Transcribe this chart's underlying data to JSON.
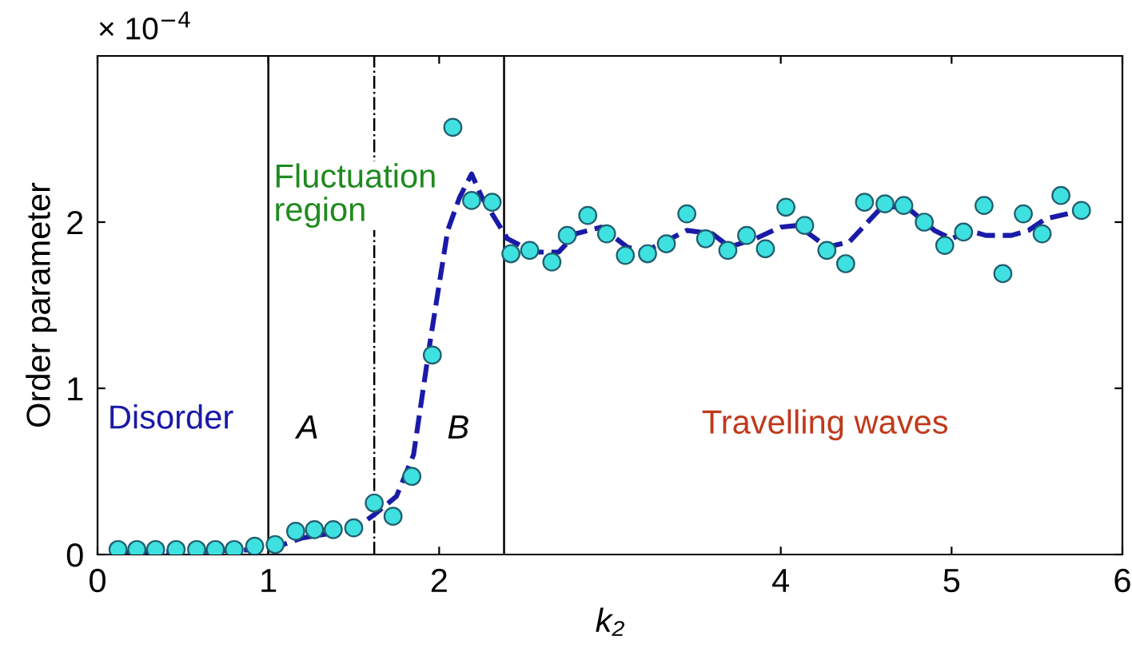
{
  "chart_data": {
    "type": "scatter",
    "xlabel": "k₂",
    "ylabel": "Order parameter",
    "xlim": [
      0,
      6
    ],
    "ylim": [
      0,
      3
    ],
    "xticks": [
      0,
      1,
      2,
      4,
      5,
      6
    ],
    "yticks": [
      0,
      1,
      2
    ],
    "grid": false,
    "series": [
      {
        "color": "#3fe0e0",
        "marker": "circle",
        "x": [
          0.12,
          0.23,
          0.34,
          0.46,
          0.58,
          0.69,
          0.8,
          0.92,
          1.04,
          1.16,
          1.27,
          1.38,
          1.5,
          1.62,
          1.73,
          1.84,
          1.96,
          2.08,
          2.19,
          2.31,
          2.42,
          2.53,
          2.66,
          2.75,
          2.87,
          2.98,
          3.09,
          3.22,
          3.33,
          3.45,
          3.56,
          3.69,
          3.8,
          3.91,
          4.03,
          4.14,
          4.27,
          4.38,
          4.49,
          4.61,
          4.72,
          4.84,
          4.96,
          5.07,
          5.19,
          5.3,
          5.42,
          5.53,
          5.64,
          5.76
        ],
        "values": [
          0.03,
          0.03,
          0.03,
          0.03,
          0.03,
          0.03,
          0.03,
          0.05,
          0.06,
          0.14,
          0.15,
          0.15,
          0.16,
          0.31,
          0.23,
          0.47,
          1.2,
          2.57,
          2.13,
          2.12,
          1.81,
          1.83,
          1.76,
          1.92,
          2.04,
          1.93,
          1.8,
          1.81,
          1.87,
          2.05,
          1.9,
          1.83,
          1.92,
          1.84,
          2.09,
          1.98,
          1.83,
          1.75,
          2.12,
          2.11,
          2.1,
          2.0,
          1.86,
          1.94,
          2.1,
          1.69,
          2.05,
          1.93,
          2.16,
          2.07
        ]
      },
      {
        "type": "line",
        "color": "#1a1aa8",
        "marker": "none",
        "line_style": "dashed",
        "x": [
          0.1,
          1.0,
          1.2,
          1.5,
          1.62,
          1.75,
          1.85,
          1.95,
          2.05,
          2.12,
          2.19,
          2.25,
          2.4,
          2.55,
          2.7,
          2.8,
          2.95,
          3.1,
          3.2,
          3.45,
          3.6,
          3.7,
          3.85,
          4.0,
          4.1,
          4.27,
          4.4,
          4.6,
          4.75,
          4.9,
          5.0,
          5.1,
          5.2,
          5.35,
          5.45,
          5.55,
          5.76
        ],
        "values": [
          0.01,
          0.03,
          0.1,
          0.15,
          0.24,
          0.35,
          0.6,
          1.3,
          1.95,
          2.15,
          2.29,
          2.15,
          1.9,
          1.82,
          1.82,
          1.93,
          1.97,
          1.85,
          1.82,
          1.95,
          1.93,
          1.85,
          1.9,
          1.97,
          1.98,
          1.85,
          1.88,
          2.1,
          2.08,
          1.95,
          1.9,
          1.95,
          1.92,
          1.92,
          1.95,
          2.02,
          2.07
        ]
      }
    ],
    "ref_lines": [
      {
        "axis": "x",
        "value": 1,
        "color": "#000000",
        "line_style": "solid"
      },
      {
        "axis": "x",
        "value": 1.62,
        "color": "#000000",
        "line_style": "dashdot"
      },
      {
        "axis": "x",
        "value": 2.38,
        "color": "#000000",
        "line_style": "solid"
      }
    ],
    "annotations": [
      "× 10$^{−4}$",
      "Disorder",
      "A",
      "B",
      "Fluctuation region",
      "Travelling waves"
    ]
  }
}
